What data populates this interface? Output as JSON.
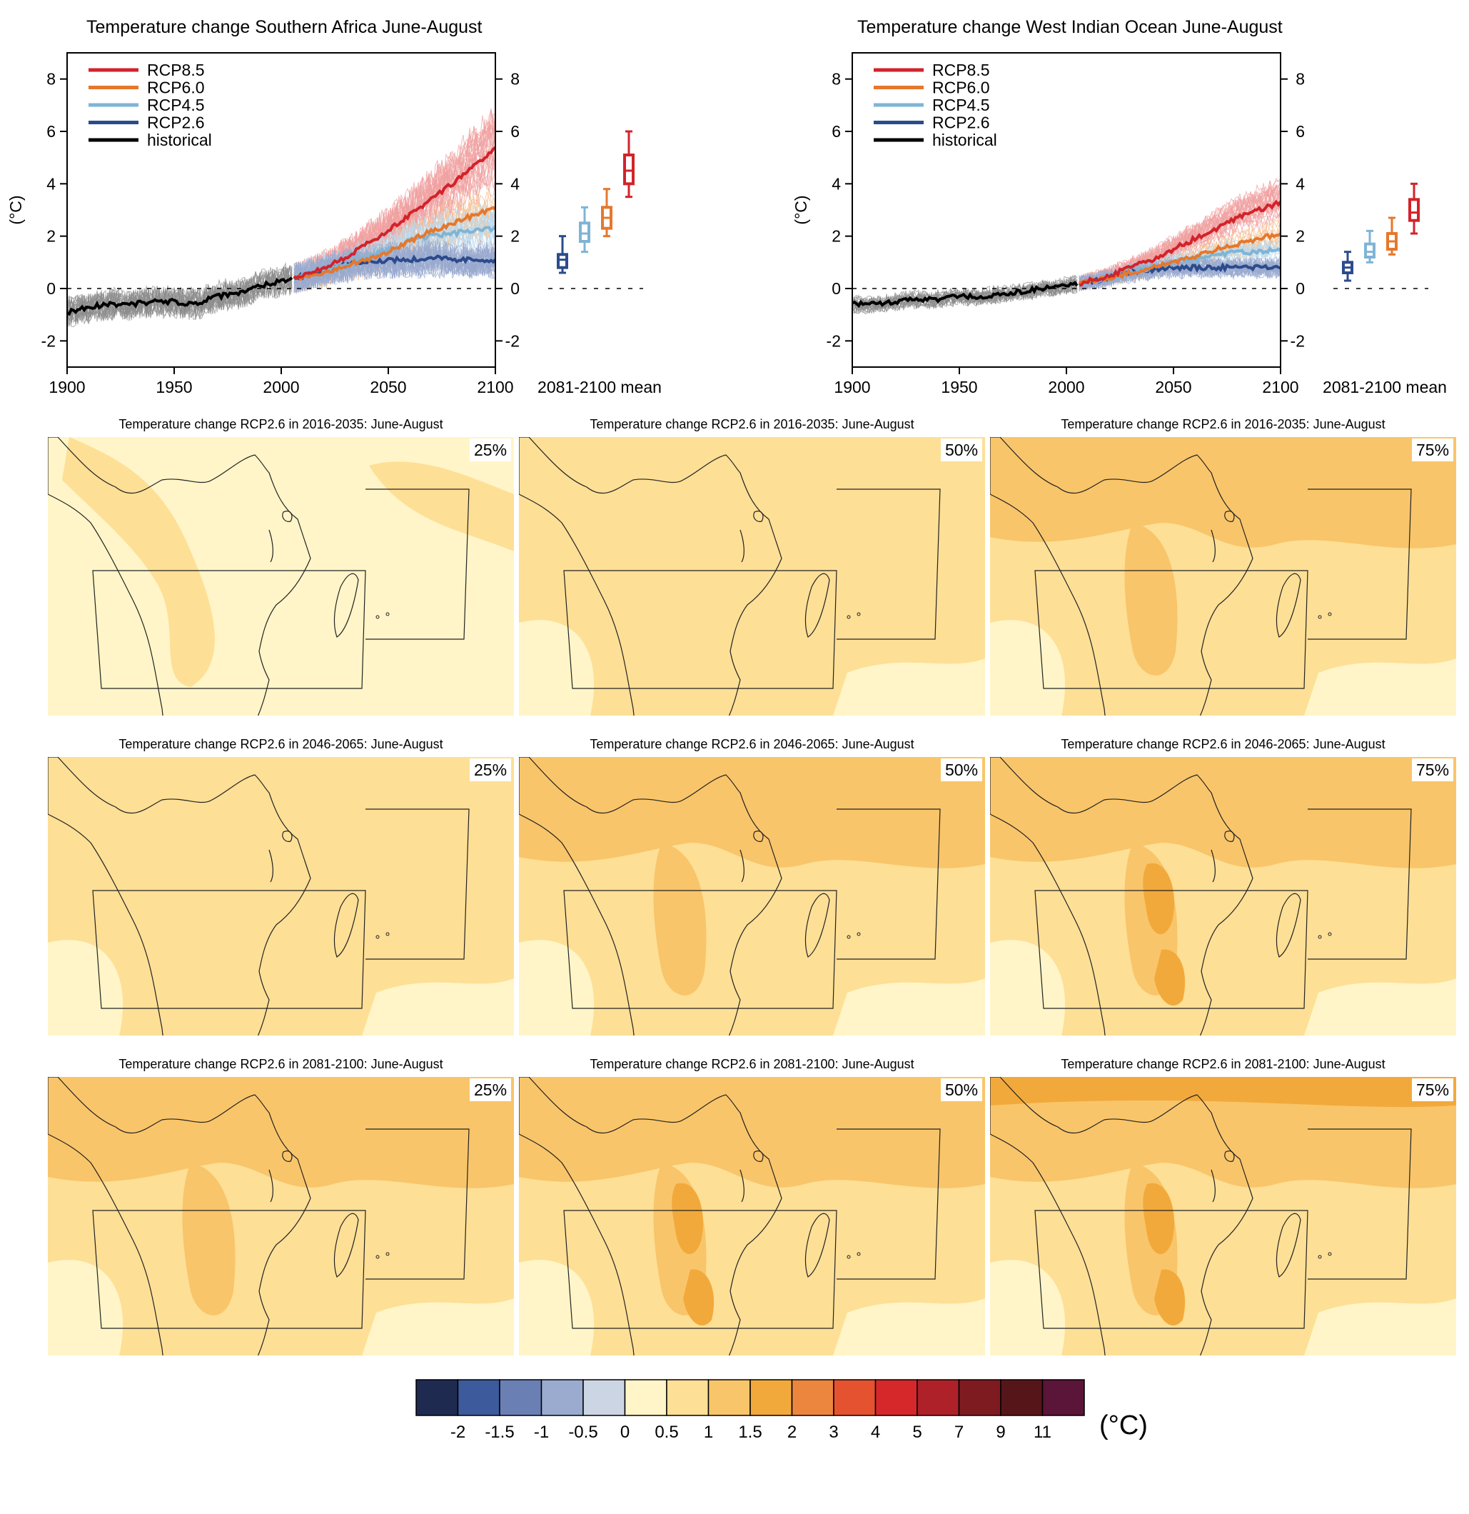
{
  "timeseries": [
    {
      "title": "Temperature change Southern Africa June-August",
      "ylabel": "(°C)",
      "xticks": [
        "1900",
        "1950",
        "2000",
        "2050",
        "2100"
      ],
      "yticks": [
        "8",
        "6",
        "4",
        "2",
        "0",
        "-2"
      ],
      "box_label": "2081-2100 mean",
      "legend": [
        "RCP8.5",
        "RCP6.0",
        "RCP4.5",
        "RCP2.6",
        "historical"
      ]
    },
    {
      "title": "Temperature change West Indian Ocean June-August",
      "ylabel": "(°C)",
      "xticks": [
        "1900",
        "1950",
        "2000",
        "2050",
        "2100"
      ],
      "yticks": [
        "8",
        "6",
        "4",
        "2",
        "0",
        "-2"
      ],
      "box_label": "2081-2100 mean",
      "legend": [
        "RCP8.5",
        "RCP6.0",
        "RCP4.5",
        "RCP2.6",
        "historical"
      ]
    }
  ],
  "maps": {
    "titles": [
      "Temperature change RCP2.6 in 2016-2035: June-August",
      "Temperature change RCP2.6 in 2046-2065: June-August",
      "Temperature change RCP2.6 in 2081-2100: June-August"
    ],
    "percentiles": [
      "25%",
      "50%",
      "75%"
    ]
  },
  "colorbar": {
    "unit": "(°C)",
    "labels": [
      "-2",
      "-1.5",
      "-1",
      "-0.5",
      "0",
      "0.5",
      "1",
      "1.5",
      "2",
      "3",
      "4",
      "5",
      "7",
      "9",
      "11"
    ],
    "colors": [
      "#1f2a50",
      "#3d5a9c",
      "#6a80b4",
      "#9aabcf",
      "#ccd5e4",
      "#fff5c8",
      "#fddf96",
      "#f9c56a",
      "#f2a93b",
      "#ec863e",
      "#e55230",
      "#d6282b",
      "#ae2128",
      "#7e1b21",
      "#561619",
      "#5a1538"
    ]
  },
  "chart_data": [
    {
      "type": "line",
      "title": "Temperature change Southern Africa June-August",
      "ylabel": "(°C)",
      "xlim": [
        1900,
        2100
      ],
      "ylim": [
        -3,
        9
      ],
      "series": [
        {
          "name": "historical",
          "color": "#000000",
          "x": [
            1900,
            1910,
            1920,
            1930,
            1940,
            1950,
            1960,
            1970,
            1980,
            1990,
            2000,
            2005
          ],
          "y": [
            -0.9,
            -0.7,
            -0.6,
            -0.6,
            -0.5,
            -0.5,
            -0.6,
            -0.3,
            -0.2,
            0.1,
            0.3,
            0.4
          ]
        },
        {
          "name": "RCP2.6",
          "color": "#2b4b8c",
          "x": [
            2006,
            2020,
            2030,
            2040,
            2050,
            2060,
            2070,
            2080,
            2090,
            2100
          ],
          "y": [
            0.4,
            0.7,
            0.9,
            1.0,
            1.1,
            1.1,
            1.2,
            1.1,
            1.1,
            1.1
          ]
        },
        {
          "name": "RCP4.5",
          "color": "#7fb4d6",
          "x": [
            2006,
            2020,
            2030,
            2040,
            2050,
            2060,
            2070,
            2080,
            2090,
            2100
          ],
          "y": [
            0.4,
            0.7,
            0.9,
            1.2,
            1.5,
            1.8,
            2.0,
            2.1,
            2.2,
            2.3
          ]
        },
        {
          "name": "RCP6.0",
          "color": "#e5782d",
          "x": [
            2006,
            2020,
            2030,
            2040,
            2050,
            2060,
            2070,
            2080,
            2090,
            2100
          ],
          "y": [
            0.4,
            0.6,
            0.9,
            1.1,
            1.4,
            1.8,
            2.2,
            2.5,
            2.8,
            3.1
          ]
        },
        {
          "name": "RCP8.5",
          "color": "#d2232a",
          "x": [
            2006,
            2020,
            2030,
            2040,
            2050,
            2060,
            2070,
            2080,
            2090,
            2100
          ],
          "y": [
            0.4,
            0.8,
            1.2,
            1.7,
            2.2,
            2.8,
            3.4,
            4.0,
            4.7,
            5.3
          ]
        }
      ],
      "boxes": [
        {
          "name": "RCP2.6",
          "color": "#2b4b8c",
          "min": 0.6,
          "q1": 0.8,
          "median": 1.1,
          "q3": 1.3,
          "max": 2.0
        },
        {
          "name": "RCP4.5",
          "color": "#7fb4d6",
          "min": 1.4,
          "q1": 1.8,
          "median": 2.1,
          "q3": 2.5,
          "max": 3.1
        },
        {
          "name": "RCP6.0",
          "color": "#e5782d",
          "min": 2.0,
          "q1": 2.3,
          "median": 2.7,
          "q3": 3.1,
          "max": 3.8
        },
        {
          "name": "RCP8.5",
          "color": "#d2232a",
          "min": 3.5,
          "q1": 4.0,
          "median": 4.5,
          "q3": 5.1,
          "max": 6.0
        }
      ]
    },
    {
      "type": "line",
      "title": "Temperature change West Indian Ocean June-August",
      "ylabel": "(°C)",
      "xlim": [
        1900,
        2100
      ],
      "ylim": [
        -3,
        9
      ],
      "series": [
        {
          "name": "historical",
          "color": "#000000",
          "x": [
            1900,
            1910,
            1920,
            1930,
            1940,
            1950,
            1960,
            1970,
            1980,
            1990,
            2000,
            2005
          ],
          "y": [
            -0.6,
            -0.6,
            -0.5,
            -0.4,
            -0.4,
            -0.3,
            -0.3,
            -0.2,
            -0.1,
            0.0,
            0.1,
            0.2
          ]
        },
        {
          "name": "RCP2.6",
          "color": "#2b4b8c",
          "x": [
            2006,
            2020,
            2030,
            2040,
            2050,
            2060,
            2070,
            2080,
            2090,
            2100
          ],
          "y": [
            0.2,
            0.4,
            0.6,
            0.7,
            0.8,
            0.8,
            0.8,
            0.8,
            0.8,
            0.8
          ]
        },
        {
          "name": "RCP4.5",
          "color": "#7fb4d6",
          "x": [
            2006,
            2020,
            2030,
            2040,
            2050,
            2060,
            2070,
            2080,
            2090,
            2100
          ],
          "y": [
            0.2,
            0.4,
            0.6,
            0.8,
            1.0,
            1.1,
            1.3,
            1.4,
            1.4,
            1.5
          ]
        },
        {
          "name": "RCP6.0",
          "color": "#e5782d",
          "x": [
            2006,
            2020,
            2030,
            2040,
            2050,
            2060,
            2070,
            2080,
            2090,
            2100
          ],
          "y": [
            0.2,
            0.4,
            0.6,
            0.8,
            1.0,
            1.2,
            1.5,
            1.7,
            1.9,
            2.1
          ]
        },
        {
          "name": "RCP8.5",
          "color": "#d2232a",
          "x": [
            2006,
            2020,
            2030,
            2040,
            2050,
            2060,
            2070,
            2080,
            2090,
            2100
          ],
          "y": [
            0.2,
            0.5,
            0.8,
            1.1,
            1.5,
            1.9,
            2.3,
            2.7,
            3.0,
            3.3
          ]
        }
      ],
      "boxes": [
        {
          "name": "RCP2.6",
          "color": "#2b4b8c",
          "min": 0.3,
          "q1": 0.6,
          "median": 0.8,
          "q3": 1.0,
          "max": 1.4
        },
        {
          "name": "RCP4.5",
          "color": "#7fb4d6",
          "min": 1.0,
          "q1": 1.2,
          "median": 1.4,
          "q3": 1.7,
          "max": 2.2
        },
        {
          "name": "RCP6.0",
          "color": "#e5782d",
          "min": 1.3,
          "q1": 1.5,
          "median": 1.8,
          "q3": 2.1,
          "max": 2.7
        },
        {
          "name": "RCP8.5",
          "color": "#d2232a",
          "min": 2.1,
          "q1": 2.6,
          "median": 2.9,
          "q3": 3.4,
          "max": 4.0
        }
      ]
    }
  ]
}
